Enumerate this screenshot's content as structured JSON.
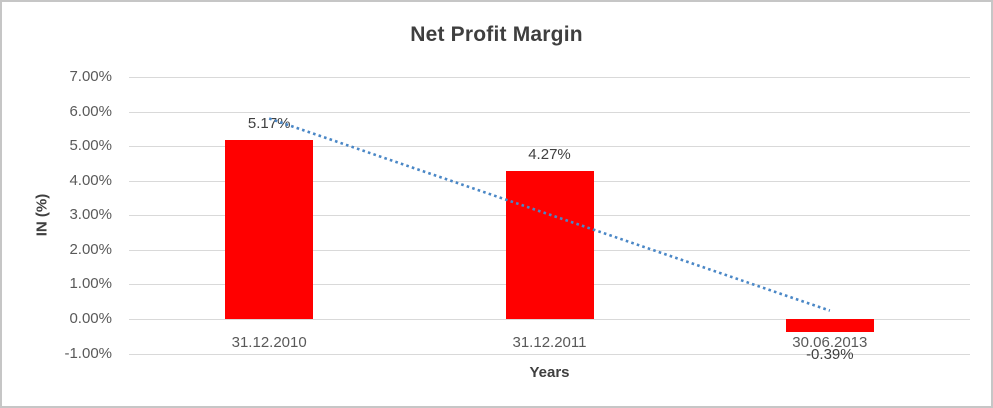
{
  "chart_data": {
    "type": "bar",
    "title": "Net Profit Margin",
    "ylabel": "IN (%)",
    "xlabel": "Years",
    "categories": [
      "31.12.2010",
      "31.12.2011",
      "30.06.2013"
    ],
    "values": [
      5.17,
      4.27,
      -0.39
    ],
    "data_labels": [
      "5.17%",
      "4.27%",
      "-0.39%"
    ],
    "ylim": [
      -1,
      7
    ],
    "yticks": [
      7,
      6,
      5,
      4,
      3,
      2,
      1,
      0,
      -1
    ],
    "ytick_labels": [
      "7.00%",
      "6.00%",
      "5.00%",
      "4.00%",
      "3.00%",
      "2.00%",
      "1.00%",
      "0.00%",
      "-1.00%"
    ],
    "grid": true,
    "legend": "none",
    "bar_color": "#ff0000",
    "trendline": {
      "type": "linear",
      "style": "dotted",
      "color": "#4a87c6",
      "start_value": 5.8,
      "end_value": 0.24
    }
  }
}
